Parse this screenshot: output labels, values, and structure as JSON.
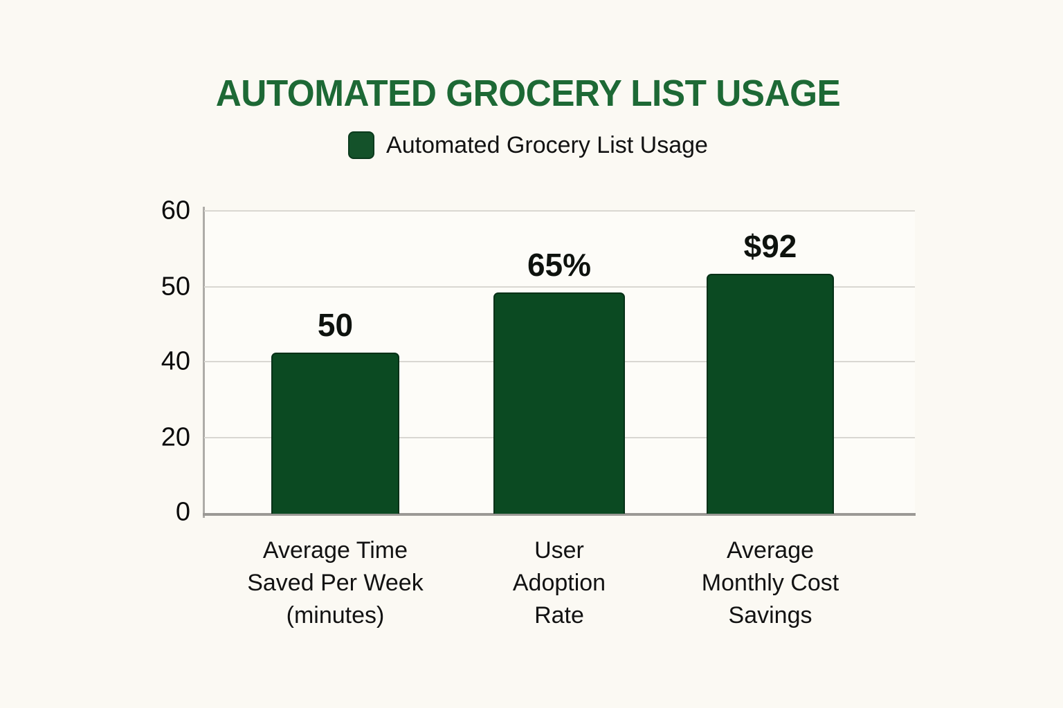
{
  "chart": {
    "title": "AUTOMATED GROCERY LIST USAGE",
    "legend_label": "Automated Grocery List Usage",
    "colors": {
      "title_green": "#1d6935",
      "bar_fill": "#0b4a22",
      "bar_border": "#053017",
      "legend_swatch": "#14522a",
      "gridline": "#d9d7d2",
      "x_axis": "#9b9995",
      "y_axis": "#aeaca8",
      "page_background": "#fbf9f3",
      "plot_background": "#fdfcf8",
      "text": "#0c0c0c"
    }
  },
  "chart_data": {
    "type": "bar",
    "title": "AUTOMATED GROCERY LIST USAGE",
    "legend": [
      "Automated Grocery List Usage"
    ],
    "legend_position": "top-center",
    "grid": true,
    "categories": [
      "Average Time Saved Per Week (minutes)",
      "User Adoption Rate",
      "Average Monthly Cost Savings"
    ],
    "values_displayed": [
      "50",
      "65%",
      "$92"
    ],
    "values_numeric": [
      50,
      65,
      92
    ],
    "y_axis_tick_labels_top_to_bottom": [
      "60",
      "50",
      "40",
      "20",
      "0"
    ],
    "y_ticks": [
      {
        "label": "60",
        "y_pct": 0
      },
      {
        "label": "50",
        "y_pct": 25.1
      },
      {
        "label": "40",
        "y_pct": 49.8
      },
      {
        "label": "20",
        "y_pct": 74.9
      },
      {
        "label": "0",
        "y_pct": 99.5
      }
    ],
    "bars": [
      {
        "value": "50",
        "label_lines": [
          "Average Time",
          "Saved Per Week",
          "(minutes)"
        ],
        "left_pct": 9.45,
        "width_pct": 18.0,
        "height_pct": 53.2
      },
      {
        "value": "65%",
        "label_lines": [
          "User",
          "Adoption",
          "Rate"
        ],
        "left_pct": 40.7,
        "width_pct": 18.5,
        "height_pct": 73.1
      },
      {
        "value": "$92",
        "label_lines": [
          "Average",
          "Monthly Cost",
          "Savings"
        ],
        "left_pct": 70.7,
        "width_pct": 17.9,
        "height_pct": 79.2
      }
    ]
  }
}
